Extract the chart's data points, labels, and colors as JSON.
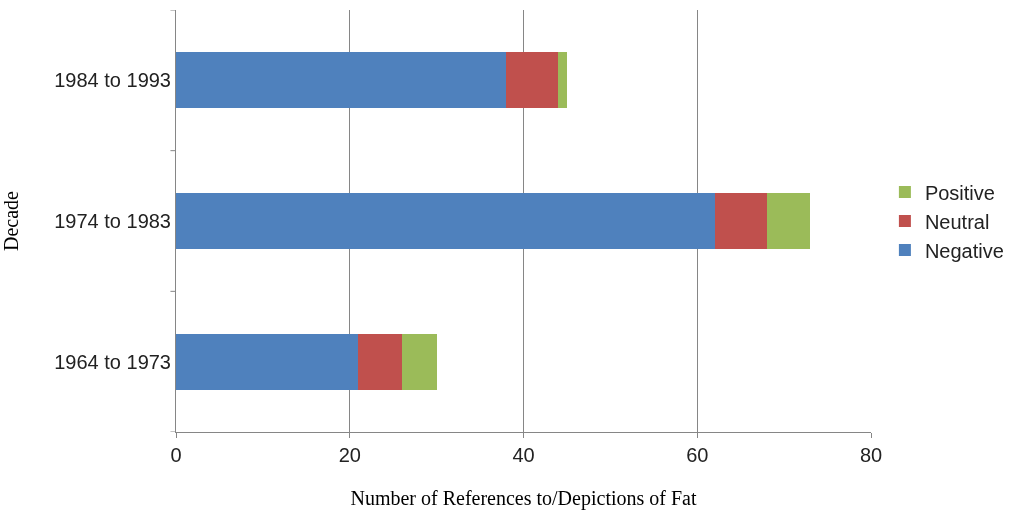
{
  "chart_data": {
    "type": "bar",
    "orientation": "horizontal",
    "stacked": true,
    "xlabel": "Number of References to/Depictions of Fat",
    "ylabel": "Decade",
    "categories": [
      "1984 to 1993",
      "1974 to 1983",
      "1964 to 1973"
    ],
    "series": [
      {
        "name": "Negative",
        "color": "#4f81bd",
        "values": [
          38,
          62,
          21
        ]
      },
      {
        "name": "Neutral",
        "color": "#c0504d",
        "values": [
          6,
          6,
          5
        ]
      },
      {
        "name": "Positive",
        "color": "#9bbb59",
        "values": [
          1,
          5,
          4
        ]
      }
    ],
    "xlim": [
      0,
      80
    ],
    "xticks": [
      0,
      20,
      40,
      60,
      80
    ],
    "grid": "x",
    "legend": "right"
  }
}
